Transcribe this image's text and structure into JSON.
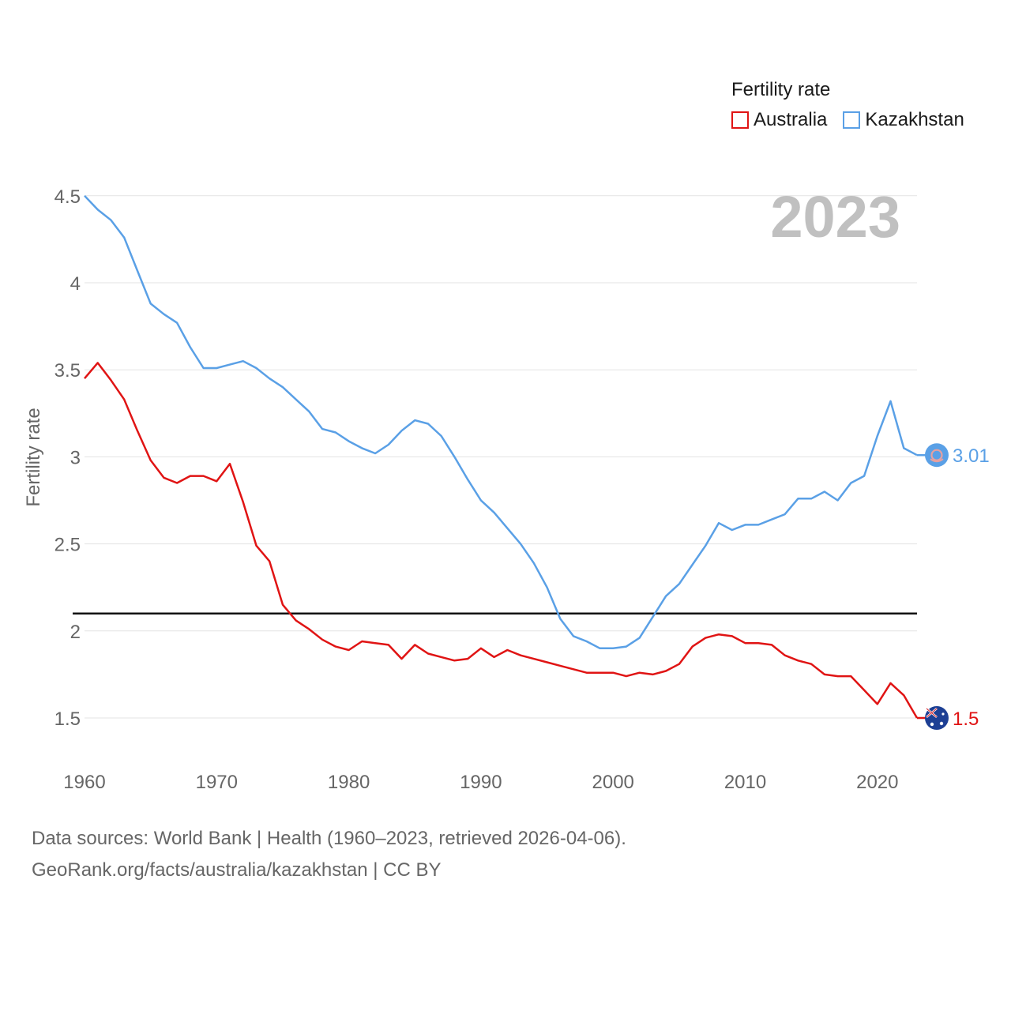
{
  "chart_data": {
    "type": "line",
    "title": "2023",
    "ylabel": "Fertility rate",
    "xlabel": "",
    "xlim": [
      1960,
      2023
    ],
    "ylim": [
      1.3,
      4.6
    ],
    "xticks": [
      1960,
      1970,
      1980,
      1990,
      2000,
      2010,
      2020
    ],
    "yticks": [
      1.5,
      2,
      2.5,
      3,
      3.5,
      4,
      4.5
    ],
    "ytick_labels": [
      "1.5",
      "2",
      "2.5",
      "3",
      "3.5",
      "4",
      "4.5"
    ],
    "reference_line": 2.1,
    "legend": {
      "title": "Fertility rate",
      "position": "top-right"
    },
    "x": [
      1960,
      1961,
      1962,
      1963,
      1964,
      1965,
      1966,
      1967,
      1968,
      1969,
      1970,
      1971,
      1972,
      1973,
      1974,
      1975,
      1976,
      1977,
      1978,
      1979,
      1980,
      1981,
      1982,
      1983,
      1984,
      1985,
      1986,
      1987,
      1988,
      1989,
      1990,
      1991,
      1992,
      1993,
      1994,
      1995,
      1996,
      1997,
      1998,
      1999,
      2000,
      2001,
      2002,
      2003,
      2004,
      2005,
      2006,
      2007,
      2008,
      2009,
      2010,
      2011,
      2012,
      2013,
      2014,
      2015,
      2016,
      2017,
      2018,
      2019,
      2020,
      2021,
      2022,
      2023
    ],
    "series": [
      {
        "name": "Australia",
        "color": "#e01414",
        "end_label": "1.5",
        "values": [
          3.45,
          3.54,
          3.44,
          3.33,
          3.15,
          2.98,
          2.88,
          2.85,
          2.89,
          2.89,
          2.86,
          2.96,
          2.74,
          2.49,
          2.4,
          2.15,
          2.06,
          2.01,
          1.95,
          1.91,
          1.89,
          1.94,
          1.93,
          1.92,
          1.84,
          1.92,
          1.87,
          1.85,
          1.83,
          1.84,
          1.9,
          1.85,
          1.89,
          1.86,
          1.84,
          1.82,
          1.8,
          1.78,
          1.76,
          1.76,
          1.76,
          1.74,
          1.76,
          1.75,
          1.77,
          1.81,
          1.91,
          1.96,
          1.98,
          1.97,
          1.93,
          1.93,
          1.92,
          1.86,
          1.83,
          1.81,
          1.75,
          1.74,
          1.74,
          1.66,
          1.58,
          1.7,
          1.63,
          1.5
        ]
      },
      {
        "name": "Kazakhstan",
        "color": "#5aa0e6",
        "end_label": "3.01",
        "values": [
          4.5,
          4.42,
          4.36,
          4.26,
          4.07,
          3.88,
          3.82,
          3.77,
          3.63,
          3.51,
          3.51,
          3.53,
          3.55,
          3.51,
          3.45,
          3.4,
          3.33,
          3.26,
          3.16,
          3.14,
          3.09,
          3.05,
          3.02,
          3.07,
          3.15,
          3.21,
          3.19,
          3.12,
          3.0,
          2.87,
          2.75,
          2.68,
          2.59,
          2.5,
          2.39,
          2.25,
          2.07,
          1.97,
          1.94,
          1.9,
          1.9,
          1.91,
          1.96,
          2.08,
          2.2,
          2.27,
          2.38,
          2.49,
          2.62,
          2.58,
          2.61,
          2.61,
          2.64,
          2.67,
          2.76,
          2.76,
          2.8,
          2.75,
          2.85,
          2.89,
          3.12,
          3.32,
          3.05,
          3.01
        ]
      }
    ]
  },
  "footer": {
    "line1": "Data sources: World Bank | Health (1960–2023, retrieved 2026-04-06).",
    "line2": "GeoRank.org/facts/australia/kazakhstan | CC BY"
  }
}
